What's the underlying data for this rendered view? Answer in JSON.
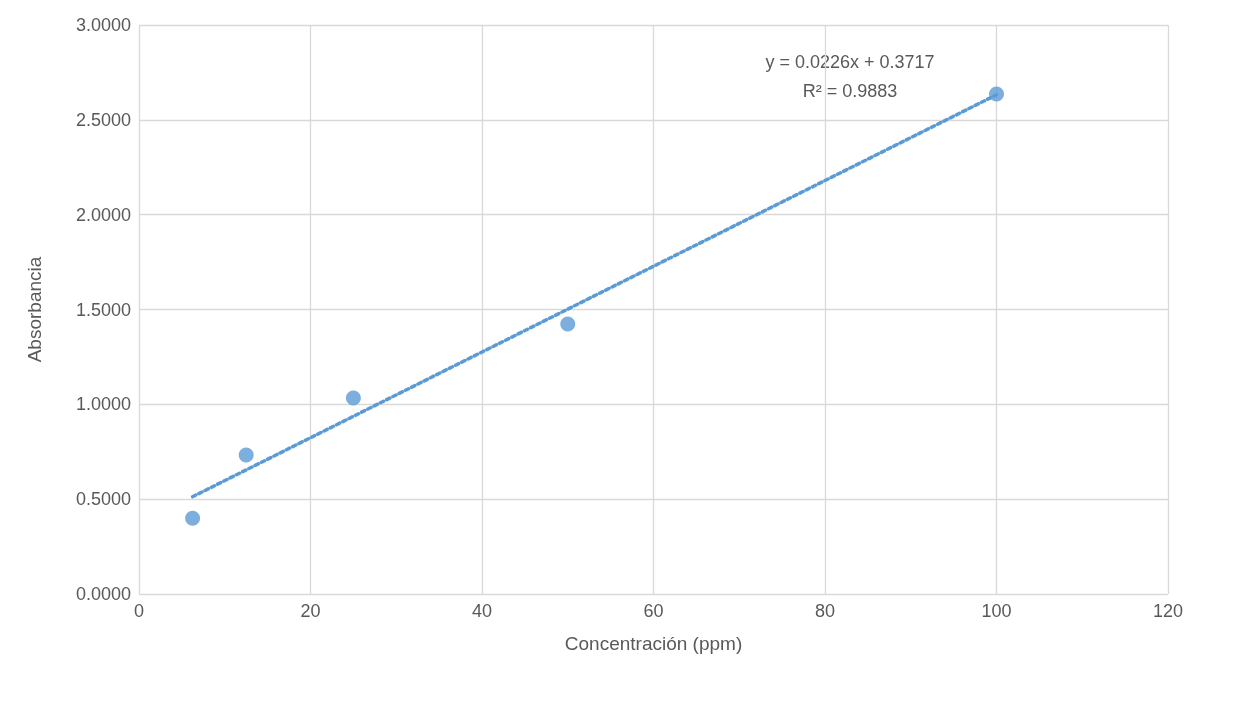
{
  "chart_data": {
    "type": "scatter",
    "xlabel": "Concentración (ppm)",
    "ylabel": "Absorbancia",
    "annotations": [
      "y = 0.0226x + 0.3717",
      "R² = 0.9883"
    ],
    "series": [
      {
        "color": "#5b9bd5",
        "marker": "circle",
        "x": [
          6.25,
          12.5,
          25,
          50,
          100
        ],
        "values": [
          0.4,
          0.733,
          1.033,
          1.424,
          2.636
        ]
      },
      {
        "type": "line",
        "color": "#5b9bd5",
        "marker": "none",
        "line_style": "dotted",
        "x": [
          6.25,
          100
        ],
        "values": [
          0.513,
          2.632
        ]
      }
    ],
    "xlim": [
      0,
      120
    ],
    "xticks": [
      0,
      20,
      40,
      60,
      80,
      100,
      120
    ],
    "ylim": [
      0,
      3
    ],
    "yticks": [
      {
        "value": 0,
        "label": "0.0000"
      },
      {
        "value": 0.5,
        "label": "0.5000"
      },
      {
        "value": 1,
        "label": "1.0000"
      },
      {
        "value": 1.5,
        "label": "1.5000"
      },
      {
        "value": 2,
        "label": "2.0000"
      },
      {
        "value": 2.5,
        "label": "2.5000"
      },
      {
        "value": 3,
        "label": "3.0000"
      }
    ],
    "grid": true
  }
}
